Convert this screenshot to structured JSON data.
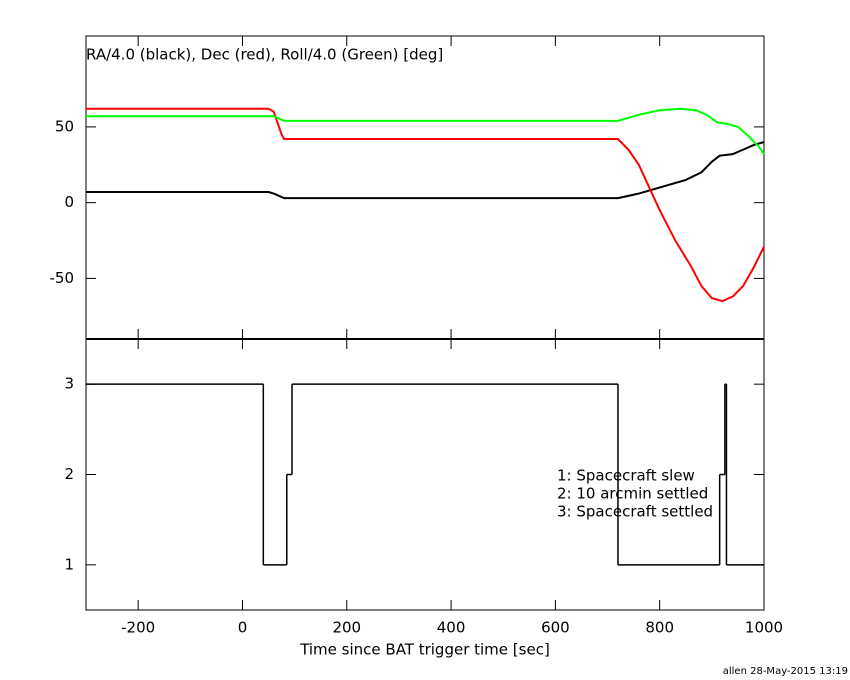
{
  "chart_data": [
    {
      "type": "line",
      "title": "RA/4.0 (black), Dec (red), Roll/4.0 (Green) [deg]",
      "xlim": [
        -300,
        1000
      ],
      "xticks": [
        -200,
        0,
        200,
        400,
        600,
        800,
        1000
      ],
      "ylim": [
        -90,
        110
      ],
      "yticks": [
        -50,
        0,
        50
      ],
      "series": [
        {
          "color": "#000000",
          "x": [
            -300,
            50,
            60,
            80,
            720,
            760,
            800,
            850,
            880,
            900,
            915,
            940,
            960,
            980,
            1000
          ],
          "values": [
            7,
            7,
            6,
            3,
            3,
            6,
            10,
            15,
            20,
            27,
            31,
            32,
            35,
            38,
            40
          ]
        },
        {
          "color": "#ff0000",
          "x": [
            -300,
            50,
            60,
            75,
            80,
            720,
            740,
            760,
            780,
            800,
            830,
            860,
            880,
            900,
            920,
            940,
            960,
            980,
            1000
          ],
          "values": [
            62,
            62,
            60,
            45,
            42,
            42,
            35,
            25,
            10,
            -5,
            -25,
            -42,
            -55,
            -63,
            -65,
            -62,
            -55,
            -43,
            -29
          ]
        },
        {
          "color": "#00ff00",
          "x": [
            -300,
            60,
            80,
            720,
            760,
            800,
            840,
            870,
            890,
            910,
            930,
            950,
            970,
            990,
            1000
          ],
          "values": [
            57,
            57,
            54,
            54,
            58,
            61,
            62,
            61,
            58,
            53,
            52,
            50,
            44,
            37,
            32
          ]
        }
      ]
    },
    {
      "type": "step",
      "xlabel": "Time since BAT trigger time [sec]",
      "xlim": [
        -300,
        1000
      ],
      "xticks": [
        -200,
        0,
        200,
        400,
        600,
        800,
        1000
      ],
      "ylim": [
        0.5,
        3.5
      ],
      "yticks": [
        1,
        2,
        3
      ],
      "series": [
        {
          "color": "#000000",
          "x": [
            -300,
            40,
            85,
            95,
            720,
            915,
            925,
            928
          ],
          "values": [
            3,
            1,
            2,
            3,
            1,
            2,
            3,
            1
          ]
        }
      ],
      "annotations": [
        "1: Spacecraft slew",
        "2: 10 arcmin settled",
        "3: Spacecraft settled"
      ]
    }
  ],
  "footer": "allen 28-May-2015 13:19"
}
